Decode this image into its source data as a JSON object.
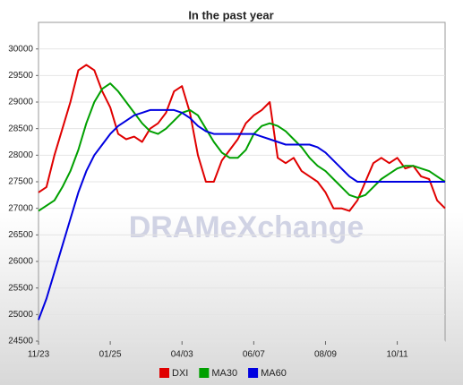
{
  "chart_data": {
    "type": "line",
    "title": "In the past year",
    "watermark": "DRAMeXchange",
    "categories": [
      "11/23",
      null,
      null,
      null,
      null,
      null,
      null,
      null,
      null,
      "01/25",
      null,
      null,
      null,
      null,
      null,
      null,
      null,
      null,
      "04/03",
      null,
      null,
      null,
      null,
      null,
      null,
      null,
      null,
      "06/07",
      null,
      null,
      null,
      null,
      null,
      null,
      null,
      null,
      "08/09",
      null,
      null,
      null,
      null,
      null,
      null,
      null,
      null,
      "10/11",
      null,
      null,
      null,
      null,
      null,
      null
    ],
    "series": [
      {
        "name": "DXI",
        "color": "#e00000",
        "values": [
          27300,
          27400,
          28000,
          28500,
          29000,
          29600,
          29700,
          29600,
          29200,
          28900,
          28400,
          28300,
          28350,
          28250,
          28500,
          28600,
          28800,
          29200,
          29300,
          28800,
          28000,
          27500,
          27500,
          27900,
          28100,
          28300,
          28600,
          28750,
          28850,
          29000,
          27950,
          27850,
          27950,
          27700,
          27600,
          27500,
          27300,
          27000,
          27000,
          26950,
          27150,
          27500,
          27850,
          27950,
          27850,
          27950,
          27750,
          27800,
          27600,
          27550,
          27150,
          27000
        ]
      },
      {
        "name": "MA30",
        "color": "#00a000",
        "values": [
          26950,
          27050,
          27150,
          27400,
          27700,
          28100,
          28600,
          29000,
          29250,
          29350,
          29200,
          29000,
          28800,
          28600,
          28450,
          28400,
          28500,
          28650,
          28800,
          28850,
          28750,
          28500,
          28250,
          28050,
          27950,
          27950,
          28100,
          28400,
          28550,
          28600,
          28550,
          28450,
          28300,
          28150,
          27950,
          27800,
          27700,
          27550,
          27400,
          27250,
          27200,
          27250,
          27400,
          27550,
          27650,
          27750,
          27800,
          27800,
          27750,
          27700,
          27600,
          27500
        ]
      },
      {
        "name": "MA60",
        "color": "#0000e0",
        "values": [
          24900,
          25300,
          25800,
          26300,
          26800,
          27300,
          27700,
          28000,
          28200,
          28400,
          28550,
          28650,
          28750,
          28800,
          28850,
          28850,
          28850,
          28850,
          28800,
          28700,
          28550,
          28450,
          28400,
          28400,
          28400,
          28400,
          28400,
          28400,
          28350,
          28300,
          28250,
          28200,
          28200,
          28200,
          28200,
          28150,
          28050,
          27900,
          27750,
          27600,
          27500,
          27500,
          27500,
          27500,
          27500,
          27500,
          27500,
          27500,
          27500,
          27500,
          27500,
          27500
        ]
      }
    ],
    "ylim": [
      24500,
      30500
    ],
    "yticks": [
      24500,
      25000,
      25500,
      26000,
      26500,
      27000,
      27500,
      28000,
      28500,
      29000,
      29500,
      30000
    ],
    "grid": true,
    "legend": "bottom"
  }
}
